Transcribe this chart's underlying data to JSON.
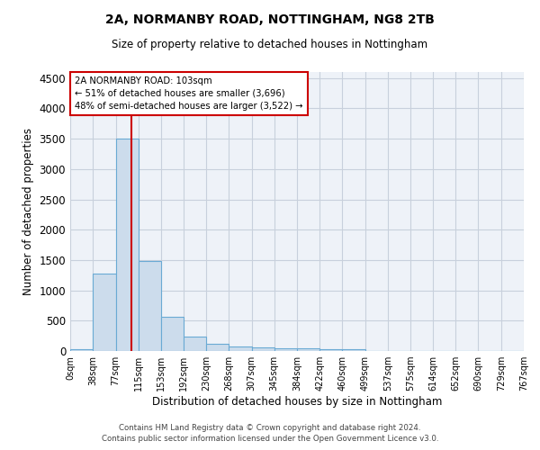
{
  "title": "2A, NORMANBY ROAD, NOTTINGHAM, NG8 2TB",
  "subtitle": "Size of property relative to detached houses in Nottingham",
  "xlabel": "Distribution of detached houses by size in Nottingham",
  "ylabel": "Number of detached properties",
  "bar_color": "#ccdcec",
  "bar_edge_color": "#6aaad4",
  "grid_color": "#c8d0dc",
  "bg_color": "#eef2f8",
  "annotation_box_color": "#cc0000",
  "vline_color": "#cc0000",
  "footer1": "Contains HM Land Registry data © Crown copyright and database right 2024.",
  "footer2": "Contains public sector information licensed under the Open Government Licence v3.0.",
  "annotation_line1": "2A NORMANBY ROAD: 103sqm",
  "annotation_line2": "← 51% of detached houses are smaller (3,696)",
  "annotation_line3": "48% of semi-detached houses are larger (3,522) →",
  "property_size_sqm": 103,
  "bin_edges": [
    0,
    38,
    77,
    115,
    153,
    192,
    230,
    268,
    307,
    345,
    384,
    422,
    460,
    499,
    537,
    575,
    614,
    652,
    690,
    729,
    767
  ],
  "bin_counts": [
    35,
    1270,
    3500,
    1480,
    570,
    240,
    115,
    80,
    55,
    50,
    40,
    35,
    35,
    5,
    5,
    5,
    5,
    5,
    0,
    5
  ],
  "ylim": [
    0,
    4600
  ],
  "yticks": [
    0,
    500,
    1000,
    1500,
    2000,
    2500,
    3000,
    3500,
    4000,
    4500
  ],
  "figsize": [
    6.0,
    5.0
  ],
  "dpi": 100
}
